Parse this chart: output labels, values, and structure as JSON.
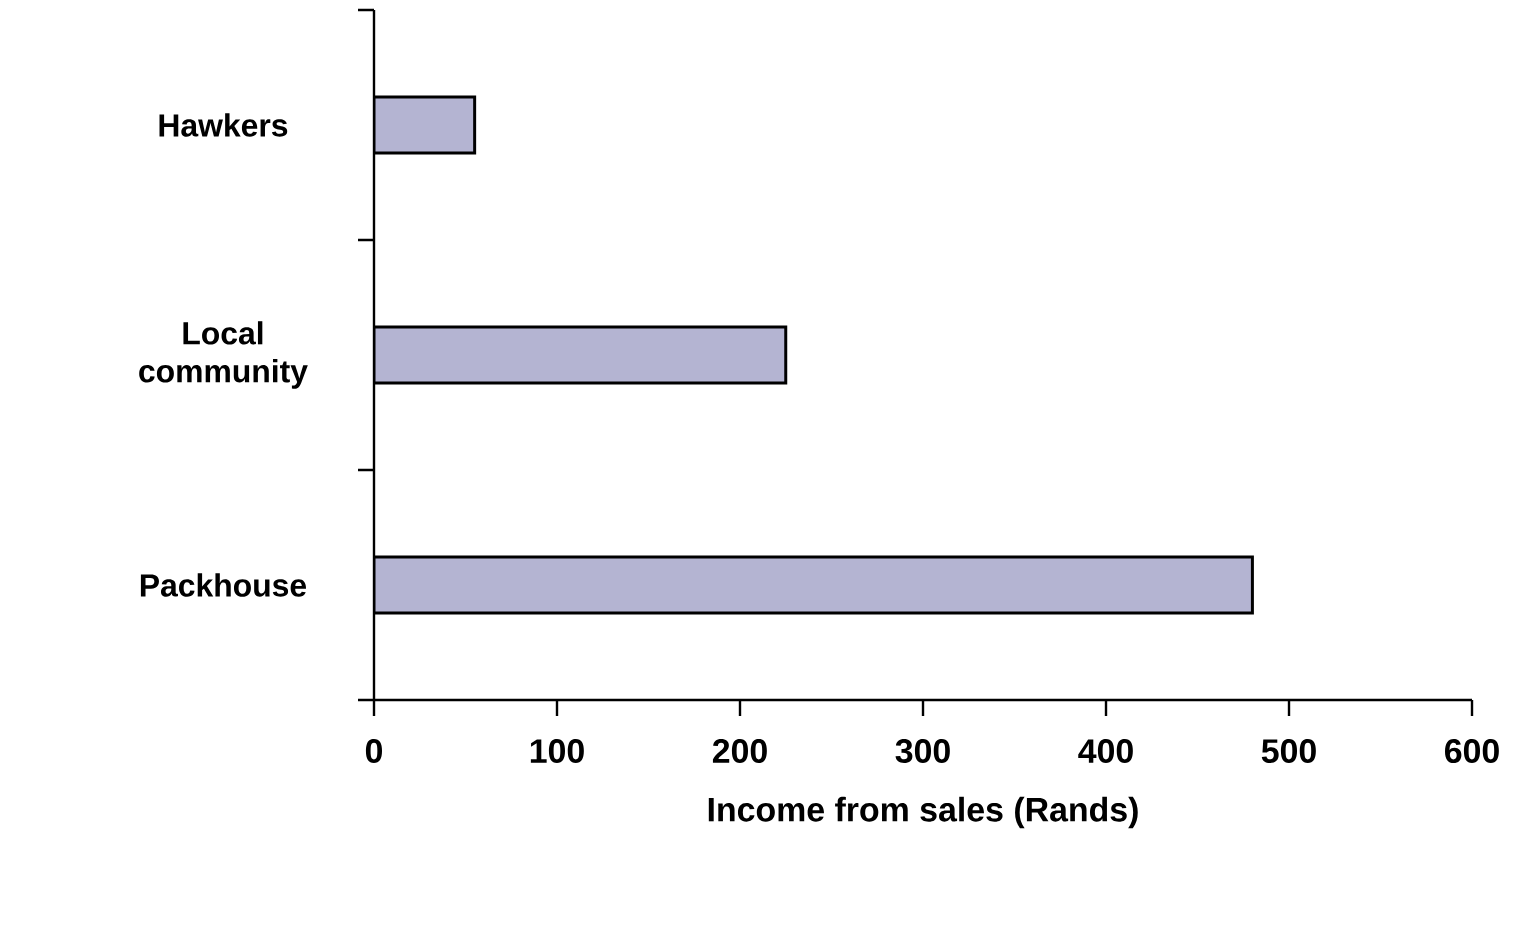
{
  "chart_data": {
    "type": "bar",
    "orientation": "horizontal",
    "xlabel": "Income from sales (Rands)",
    "categories": [
      "Hawkers",
      "Local community",
      "Packhouse"
    ],
    "values": [
      55,
      225,
      480
    ],
    "color": "#b4b4d2",
    "xlim": [
      0,
      600
    ],
    "xticks": [
      0,
      100,
      200,
      300,
      400,
      500,
      600
    ],
    "grid": false
  }
}
